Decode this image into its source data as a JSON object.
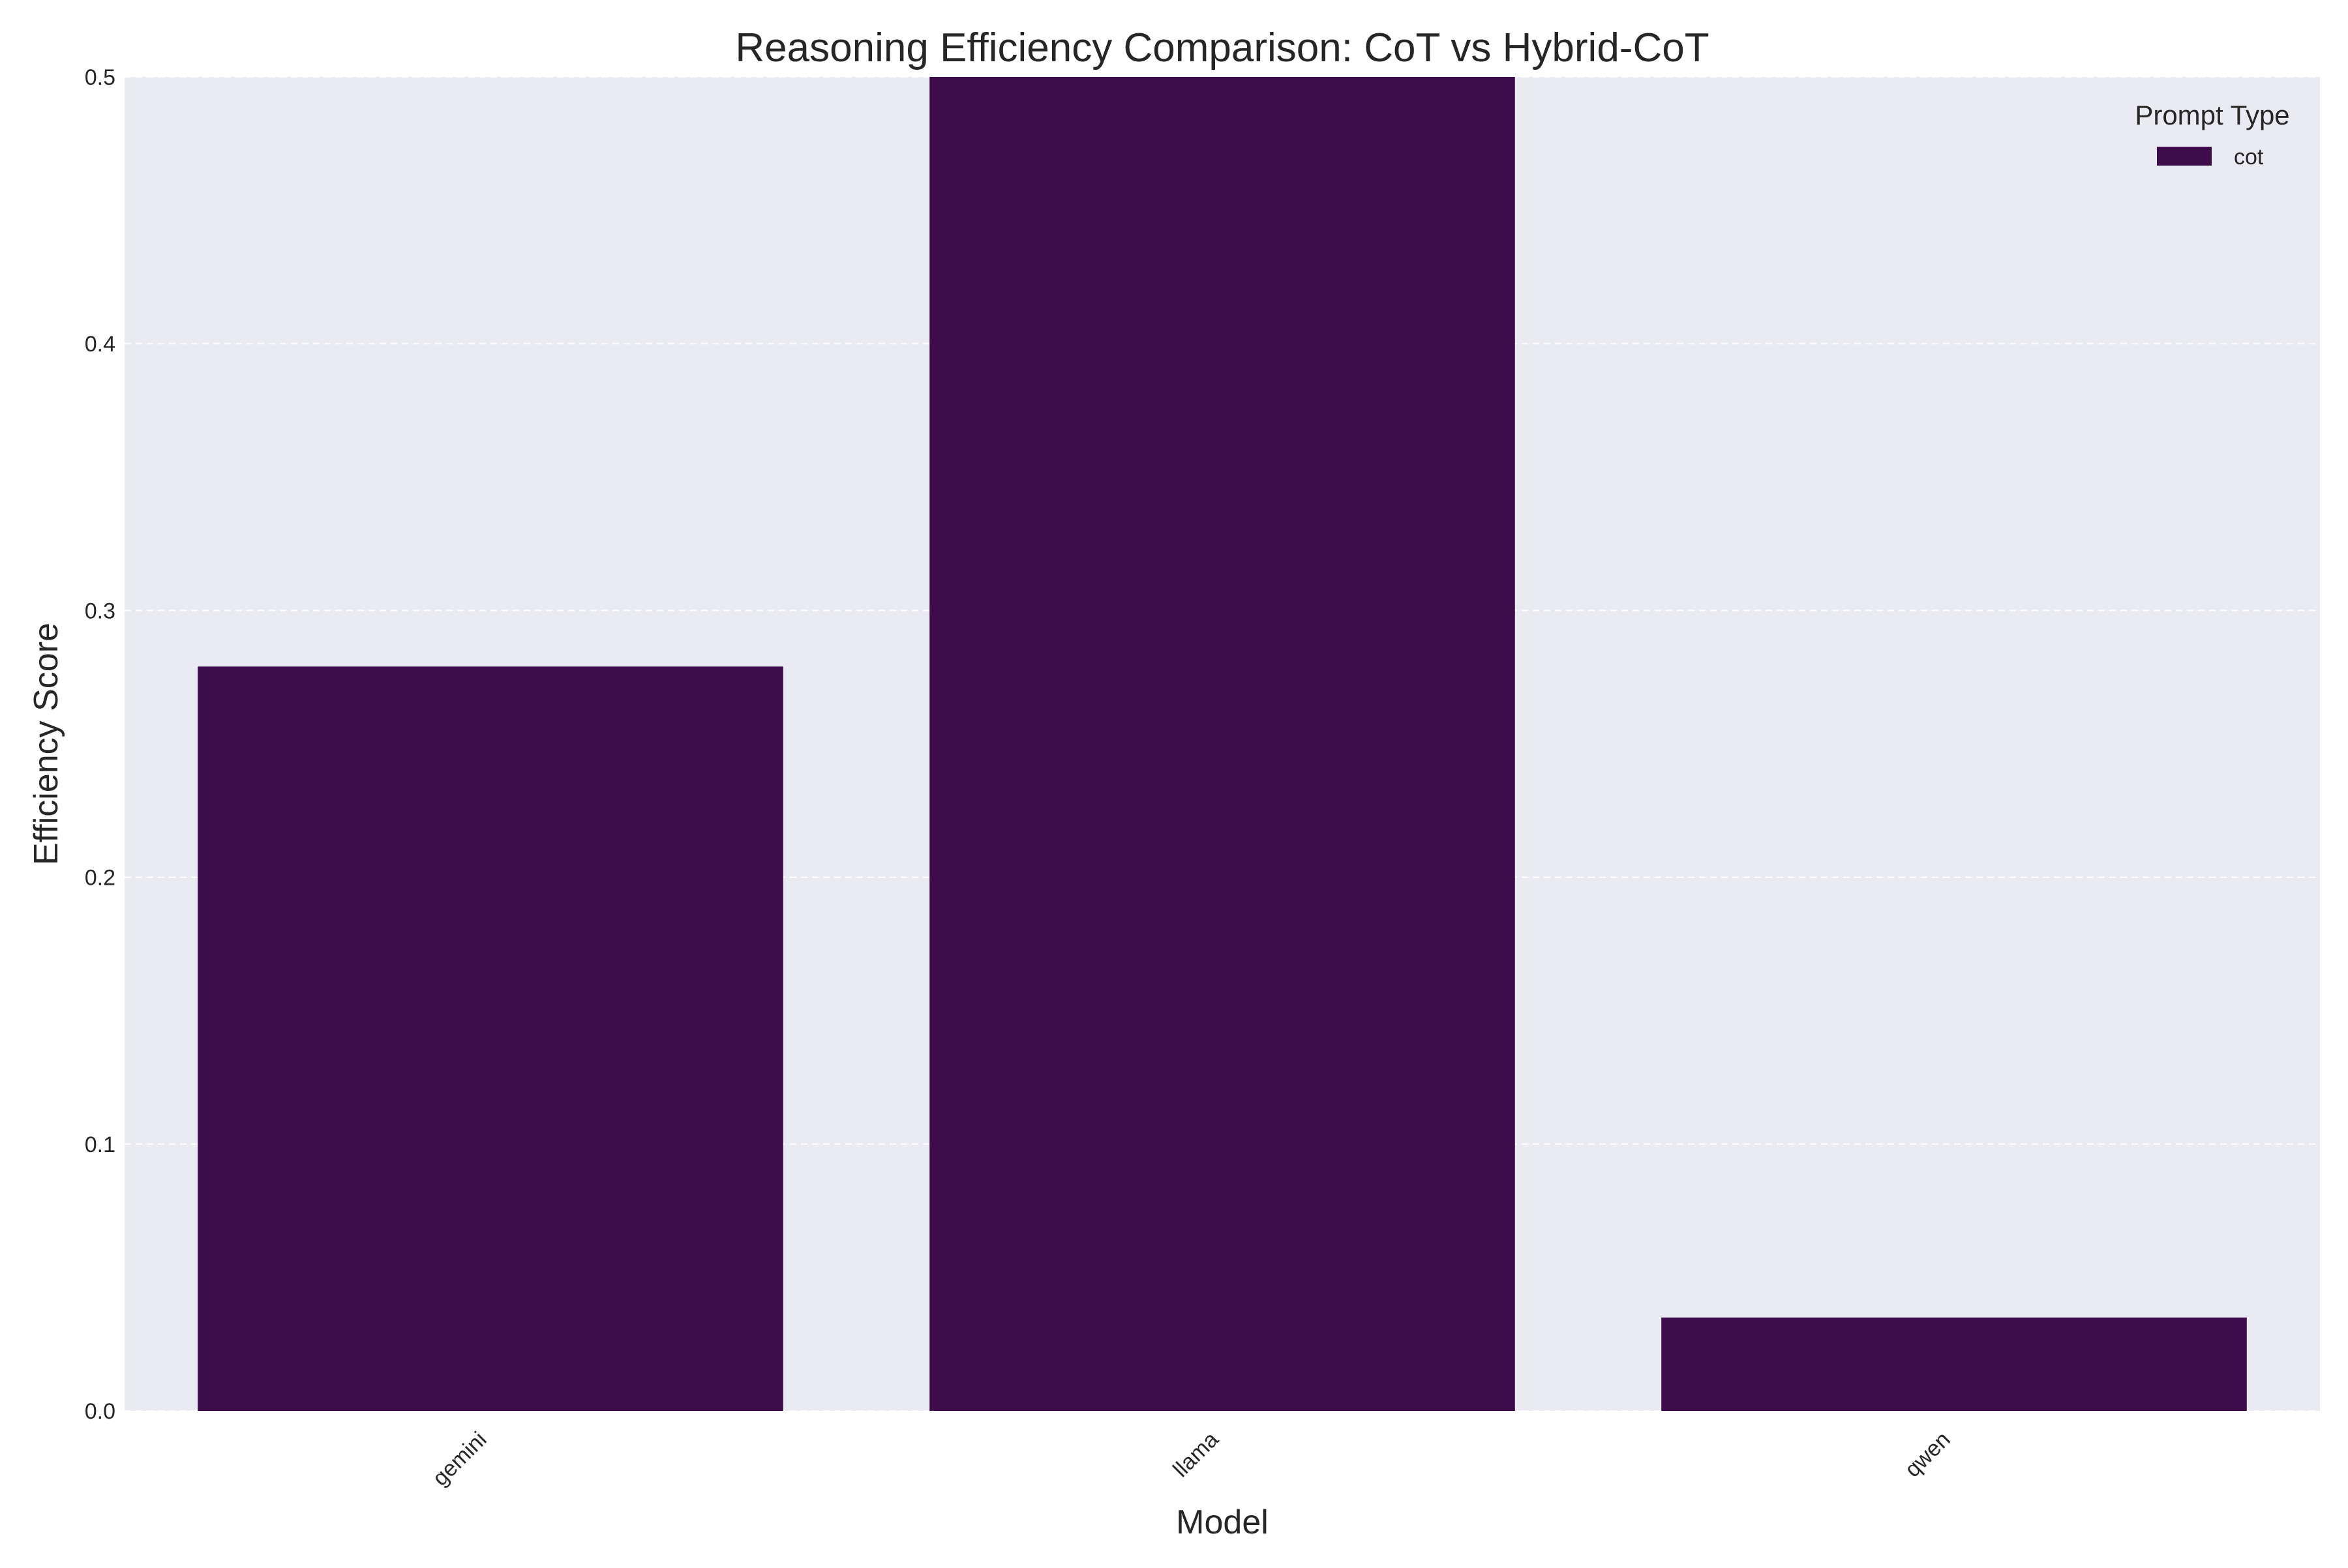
{
  "chart_data": {
    "type": "bar",
    "title": "Reasoning Efficiency Comparison: CoT vs Hybrid-CoT",
    "xlabel": "Model",
    "ylabel": "Efficiency Score",
    "categories": [
      "gemini",
      "llama",
      "qwen"
    ],
    "series": [
      {
        "name": "cot",
        "values": [
          0.279,
          0.5,
          0.035
        ],
        "color": "#3e0c4a"
      }
    ],
    "ylim": [
      0,
      0.5
    ],
    "yticks": [
      0.0,
      0.1,
      0.2,
      0.3,
      0.4,
      0.5
    ],
    "ytick_labels": [
      "0.0",
      "0.1",
      "0.2",
      "0.3",
      "0.4",
      "0.5"
    ],
    "grid": true,
    "legend": {
      "title": "Prompt Type",
      "placement": "top-right"
    },
    "colors": {
      "plot_background": "#eaeaf2",
      "grid": "#ffffff"
    }
  }
}
